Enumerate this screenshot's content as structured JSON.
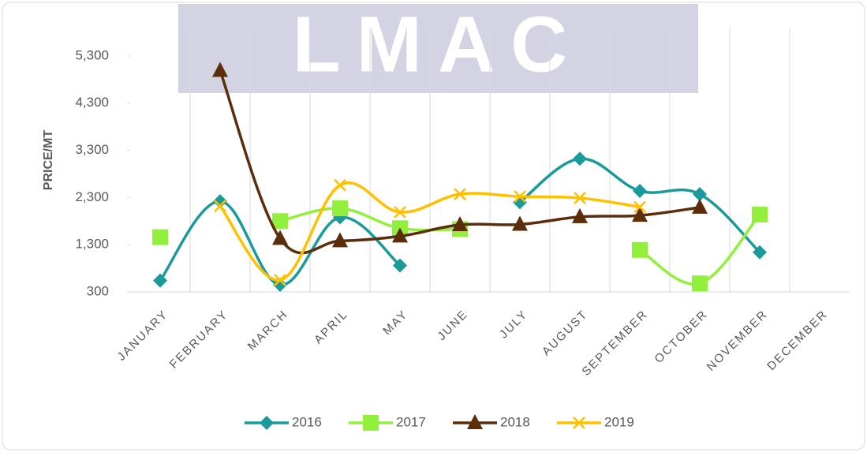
{
  "chart_data": {
    "type": "line",
    "watermark": "LMAC",
    "y_label": "PRICE/MT",
    "categories": [
      "JANUARY",
      "FEBRUARY",
      "MARCH",
      "APRIL",
      "MAY",
      "JUNE",
      "JULY",
      "AUGUST",
      "SEPTEMBER",
      "OCTOBER",
      "NOVEMBER",
      "DECEMBER"
    ],
    "ylim": [
      300,
      5900
    ],
    "yticks": [
      300,
      {
        "value": 1300,
        "label": "1,300"
      },
      {
        "value": 2300,
        "label": "2,300"
      },
      {
        "value": 3300,
        "label": "3,300"
      },
      {
        "value": 4300,
        "label": "4,300"
      },
      {
        "value": 5300,
        "label": "5,300"
      }
    ],
    "grid": true,
    "legend": "bottom",
    "series": [
      {
        "name": "2016",
        "color": "#1a9a9a",
        "marker": "diamond",
        "values": [
          540,
          2220,
          450,
          1880,
          860,
          null,
          2200,
          3120,
          2440,
          2370,
          1140,
          null
        ]
      },
      {
        "name": "2017",
        "color": "#92f03c",
        "marker": "square",
        "values": [
          1460,
          null,
          1800,
          2070,
          1650,
          1630,
          null,
          null,
          1190,
          480,
          1940,
          null
        ]
      },
      {
        "name": "2018",
        "color": "#5c2d0a",
        "marker": "triangle",
        "values": [
          null,
          4990,
          1430,
          1380,
          1480,
          1720,
          1730,
          1890,
          1920,
          2090,
          null,
          null
        ]
      },
      {
        "name": "2019",
        "color": "#ffc000",
        "marker": "x",
        "values": [
          null,
          2120,
          550,
          2560,
          1990,
          2370,
          2320,
          2290,
          2100,
          null,
          null,
          null
        ]
      }
    ]
  }
}
